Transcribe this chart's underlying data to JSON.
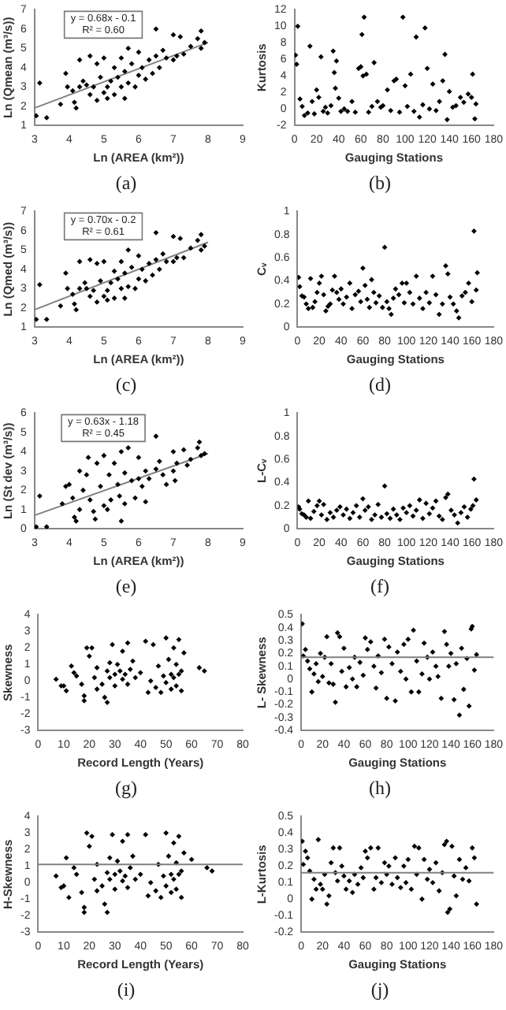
{
  "chart_data": [
    {
      "type": "scatter",
      "title": "(a)",
      "xlabel": "Ln (AREA (km²))",
      "ylabel": "Ln (Qmean (m³/s))",
      "xlim": [
        3,
        9
      ],
      "xticks": [
        3,
        4,
        5,
        6,
        7,
        8,
        9
      ],
      "ylim": [
        1,
        7
      ],
      "yticks": [
        1,
        2,
        3,
        4,
        5,
        6,
        7
      ],
      "marker": "diamond",
      "annotations": [
        "y = 0.68x - 0.1",
        "R² = 0.60"
      ],
      "series": [
        {
          "color": "#000000",
          "x": [
            3.05,
            3.15,
            3.35,
            3.75,
            3.9,
            3.95,
            4.1,
            4.15,
            4.2,
            4.3,
            4.3,
            4.4,
            4.5,
            4.6,
            4.6,
            4.7,
            4.8,
            4.8,
            4.9,
            5.0,
            5.0,
            5.1,
            5.1,
            5.2,
            5.3,
            5.3,
            5.4,
            5.5,
            5.5,
            5.6,
            5.6,
            5.7,
            5.7,
            5.8,
            5.9,
            6.0,
            6.0,
            6.1,
            6.2,
            6.3,
            6.4,
            6.5,
            6.5,
            6.6,
            6.7,
            6.8,
            7.0,
            7.0,
            7.1,
            7.2,
            7.3,
            7.5,
            7.7,
            7.8,
            7.8,
            7.9
          ],
          "values": [
            1.5,
            3.2,
            1.4,
            2.1,
            3.7,
            3.0,
            2.8,
            2.2,
            1.9,
            4.4,
            3.0,
            3.3,
            3.1,
            4.6,
            2.6,
            3.0,
            2.3,
            4.2,
            3.5,
            2.7,
            4.5,
            3.0,
            2.4,
            3.3,
            4.0,
            2.6,
            3.5,
            4.5,
            3.0,
            2.4,
            3.8,
            5.0,
            3.2,
            4.2,
            3.0,
            4.8,
            3.6,
            4.0,
            3.4,
            4.4,
            3.7,
            6.0,
            4.6,
            4.0,
            4.9,
            4.5,
            5.7,
            4.4,
            4.6,
            5.6,
            4.7,
            5.1,
            5.5,
            5.9,
            5.0,
            5.3
          ]
        },
        {
          "type": "line",
          "color": "#808080",
          "marker": "none",
          "x": [
            3,
            8
          ],
          "values": [
            1.9,
            5.3
          ]
        }
      ]
    },
    {
      "type": "scatter",
      "title": "(b)",
      "xlabel": "Gauging Stations",
      "ylabel": "Kurtosis",
      "xlim": [
        0,
        180
      ],
      "xticks": [
        0,
        20,
        40,
        60,
        80,
        100,
        120,
        140,
        160,
        180
      ],
      "ylim": [
        -2,
        12
      ],
      "yticks": [
        -2,
        0,
        2,
        4,
        6,
        8,
        10,
        12
      ],
      "marker": "diamond",
      "series": [
        {
          "color": "#000000",
          "x": [
            1,
            2,
            3,
            5,
            7,
            9,
            12,
            14,
            16,
            18,
            20,
            22,
            24,
            26,
            28,
            30,
            33,
            35,
            36,
            37,
            38,
            40,
            42,
            45,
            48,
            52,
            55,
            58,
            60,
            61,
            62,
            63,
            65,
            67,
            70,
            72,
            75,
            78,
            80,
            84,
            87,
            90,
            92,
            95,
            98,
            100,
            102,
            105,
            108,
            110,
            113,
            116,
            118,
            120,
            122,
            125,
            128,
            131,
            134,
            136,
            138,
            140,
            143,
            146,
            150,
            153,
            157,
            160,
            161,
            163,
            164
          ],
          "values": [
            6.5,
            5.4,
            10,
            1.2,
            0.3,
            -0.8,
            -0.5,
            7.6,
            0.9,
            -0.6,
            2.3,
            1.4,
            6.3,
            -0.3,
            0.2,
            -0.5,
            0.4,
            7.0,
            4.4,
            2.5,
            5.8,
            1.3,
            -0.3,
            0,
            -0.3,
            0.9,
            -0.4,
            4.9,
            5.1,
            9.0,
            4.0,
            11.1,
            4.2,
            -0.4,
            0.3,
            5.6,
            0.9,
            0.2,
            0.4,
            2.3,
            -0.2,
            3.4,
            3.6,
            -0.4,
            11.1,
            2.8,
            0.3,
            4.2,
            -0.3,
            8.7,
            -1.0,
            0.5,
            9.8,
            4.9,
            0,
            3.0,
            -0.2,
            0.9,
            3.4,
            6.6,
            -1.3,
            2.1,
            0.2,
            0.4,
            1.4,
            0.8,
            1.8,
            1.4,
            4.2,
            -1.2,
            0.6
          ]
        }
      ]
    },
    {
      "type": "scatter",
      "title": "(c)",
      "xlabel": "Ln (AREA (km²))",
      "ylabel": "Ln (Qmed (m³/s))",
      "xlim": [
        3,
        9
      ],
      "xticks": [
        3,
        4,
        5,
        6,
        7,
        8,
        9
      ],
      "ylim": [
        1,
        7
      ],
      "yticks": [
        1,
        2,
        3,
        4,
        5,
        6,
        7
      ],
      "marker": "diamond",
      "annotations": [
        "y = 0.70x - 0.2",
        "R² = 0.61"
      ],
      "series": [
        {
          "color": "#000000",
          "x": [
            3.05,
            3.15,
            3.35,
            3.75,
            3.9,
            3.95,
            4.1,
            4.15,
            4.2,
            4.3,
            4.3,
            4.45,
            4.5,
            4.6,
            4.6,
            4.7,
            4.8,
            4.8,
            4.9,
            5.0,
            5.0,
            5.1,
            5.1,
            5.2,
            5.3,
            5.3,
            5.4,
            5.5,
            5.5,
            5.6,
            5.6,
            5.7,
            5.7,
            5.8,
            5.9,
            6.0,
            6.0,
            6.1,
            6.2,
            6.3,
            6.4,
            6.5,
            6.5,
            6.6,
            6.7,
            6.8,
            7.0,
            7.0,
            7.1,
            7.2,
            7.3,
            7.5,
            7.7,
            7.8,
            7.8,
            7.9
          ],
          "values": [
            1.4,
            3.2,
            1.4,
            2.1,
            3.8,
            3.0,
            2.7,
            2.2,
            1.9,
            4.4,
            3.0,
            3.3,
            3.0,
            4.5,
            2.6,
            2.9,
            2.3,
            4.3,
            3.4,
            2.6,
            4.4,
            2.9,
            2.4,
            3.3,
            3.9,
            2.5,
            3.5,
            4.4,
            3.0,
            2.5,
            3.8,
            5.0,
            3.1,
            4.1,
            3.0,
            4.7,
            3.5,
            4.0,
            3.4,
            4.3,
            3.7,
            5.9,
            4.5,
            4.0,
            4.8,
            4.4,
            5.7,
            4.4,
            4.6,
            5.6,
            4.6,
            5.1,
            5.5,
            5.8,
            5.0,
            5.2
          ]
        },
        {
          "type": "line",
          "color": "#808080",
          "marker": "none",
          "x": [
            3,
            8
          ],
          "values": [
            1.9,
            5.4
          ]
        }
      ]
    },
    {
      "type": "scatter",
      "title": "(d)",
      "xlabel": "Gauging Stations",
      "ylabel": "Cᵥ",
      "xlim": [
        0,
        180
      ],
      "xticks": [
        0,
        20,
        40,
        60,
        80,
        100,
        120,
        140,
        160,
        180
      ],
      "ylim": [
        0,
        1
      ],
      "yticks": [
        0,
        0.2,
        0.4,
        0.6,
        0.8,
        1
      ],
      "marker": "diamond",
      "series": [
        {
          "color": "#000000",
          "x": [
            1,
            2,
            4,
            6,
            8,
            10,
            12,
            14,
            16,
            18,
            20,
            22,
            24,
            26,
            28,
            30,
            32,
            34,
            36,
            38,
            40,
            42,
            45,
            48,
            50,
            53,
            56,
            58,
            60,
            62,
            64,
            66,
            68,
            70,
            72,
            75,
            78,
            80,
            82,
            84,
            86,
            88,
            90,
            93,
            96,
            98,
            100,
            103,
            106,
            109,
            112,
            115,
            118,
            121,
            124,
            127,
            130,
            133,
            136,
            138,
            140,
            143,
            146,
            148,
            151,
            154,
            157,
            160,
            162,
            164,
            165
          ],
          "values": [
            0.43,
            0.35,
            0.27,
            0.26,
            0.2,
            0.16,
            0.42,
            0.17,
            0.22,
            0.3,
            0.38,
            0.44,
            0.28,
            0.14,
            0.18,
            0.2,
            0.32,
            0.44,
            0.3,
            0.24,
            0.33,
            0.2,
            0.26,
            0.38,
            0.16,
            0.28,
            0.31,
            0.22,
            0.51,
            0.36,
            0.24,
            0.17,
            0.41,
            0.3,
            0.21,
            0.27,
            0.17,
            0.69,
            0.22,
            0.16,
            0.11,
            0.25,
            0.33,
            0.28,
            0.38,
            0.21,
            0.38,
            0.3,
            0.2,
            0.44,
            0.25,
            0.16,
            0.3,
            0.21,
            0.44,
            0.28,
            0.11,
            0.2,
            0.53,
            0.46,
            0.26,
            0.2,
            0.14,
            0.08,
            0.27,
            0.3,
            0.38,
            0.22,
            0.83,
            0.32,
            0.47
          ]
        }
      ]
    },
    {
      "type": "scatter",
      "title": "(e)",
      "xlabel": "Ln (AREA (km²))",
      "ylabel": "Ln (St dev (m³/s))",
      "xlim": [
        3,
        9
      ],
      "xticks": [
        3,
        4,
        5,
        6,
        7,
        8,
        9
      ],
      "ylim": [
        0,
        6
      ],
      "yticks": [
        0,
        1,
        2,
        3,
        4,
        5,
        6
      ],
      "marker": "diamond",
      "annotations": [
        "y = 0.63x - 1.18",
        "R² = 0.45"
      ],
      "series": [
        {
          "color": "#000000",
          "x": [
            3.05,
            3.15,
            3.35,
            3.8,
            3.9,
            4.0,
            4.1,
            4.15,
            4.2,
            4.3,
            4.3,
            4.4,
            4.5,
            4.55,
            4.6,
            4.7,
            4.75,
            4.8,
            4.9,
            5.0,
            5.0,
            5.1,
            5.15,
            5.2,
            5.3,
            5.4,
            5.45,
            5.5,
            5.5,
            5.6,
            5.6,
            5.7,
            5.8,
            5.9,
            6.0,
            6.0,
            6.1,
            6.2,
            6.2,
            6.3,
            6.5,
            6.5,
            6.6,
            6.7,
            6.8,
            7.0,
            7.0,
            7.05,
            7.1,
            7.3,
            7.4,
            7.5,
            7.7,
            7.75,
            7.8,
            7.9
          ],
          "values": [
            0.1,
            1.7,
            0.1,
            1.3,
            2.2,
            2.3,
            1.6,
            0.6,
            0.4,
            3.0,
            1.0,
            2.0,
            2.8,
            3.7,
            1.5,
            0.9,
            0.5,
            3.4,
            2.2,
            1.2,
            3.8,
            1.0,
            2.8,
            1.5,
            3.4,
            2.3,
            1.7,
            4.0,
            0.4,
            1.3,
            2.9,
            4.2,
            2.5,
            1.6,
            3.7,
            2.6,
            2.2,
            1.4,
            3.0,
            2.6,
            4.8,
            3.1,
            3.5,
            2.8,
            2.3,
            4.0,
            3.0,
            2.5,
            3.4,
            4.1,
            3.3,
            3.6,
            4.2,
            4.5,
            3.8,
            3.9
          ]
        },
        {
          "type": "line",
          "color": "#808080",
          "marker": "none",
          "x": [
            3,
            8
          ],
          "values": [
            0.7,
            3.9
          ]
        }
      ]
    },
    {
      "type": "scatter",
      "title": "(f)",
      "xlabel": "Gauging Stations",
      "ylabel": "L-Cᵥ",
      "xlim": [
        0,
        180
      ],
      "xticks": [
        0,
        20,
        40,
        60,
        80,
        100,
        120,
        140,
        160,
        180
      ],
      "ylim": [
        0,
        1
      ],
      "yticks": [
        0,
        0.2,
        0.4,
        0.6,
        0.8,
        1
      ],
      "marker": "diamond",
      "series": [
        {
          "color": "#000000",
          "x": [
            1,
            2,
            4,
            6,
            8,
            10,
            12,
            15,
            18,
            20,
            22,
            24,
            27,
            30,
            33,
            36,
            39,
            42,
            45,
            48,
            51,
            54,
            57,
            60,
            62,
            65,
            68,
            71,
            74,
            77,
            80,
            82,
            85,
            88,
            91,
            94,
            97,
            100,
            103,
            106,
            109,
            112,
            115,
            118,
            121,
            124,
            127,
            130,
            133,
            136,
            138,
            141,
            144,
            147,
            150,
            153,
            156,
            159,
            161,
            162,
            164
          ],
          "values": [
            0.19,
            0.17,
            0.13,
            0.12,
            0.1,
            0.24,
            0.09,
            0.15,
            0.2,
            0.24,
            0.12,
            0.21,
            0.08,
            0.14,
            0.1,
            0.16,
            0.19,
            0.12,
            0.17,
            0.09,
            0.14,
            0.2,
            0.1,
            0.26,
            0.16,
            0.19,
            0.08,
            0.12,
            0.21,
            0.1,
            0.37,
            0.13,
            0.09,
            0.17,
            0.12,
            0.08,
            0.18,
            0.14,
            0.2,
            0.11,
            0.16,
            0.25,
            0.09,
            0.22,
            0.13,
            0.18,
            0.24,
            0.11,
            0.08,
            0.27,
            0.3,
            0.16,
            0.12,
            0.05,
            0.14,
            0.19,
            0.1,
            0.17,
            0.2,
            0.43,
            0.25
          ]
        }
      ]
    },
    {
      "type": "scatter",
      "title": "(g)",
      "xlabel": "Record Length (Years)",
      "ylabel": "Skewness",
      "xlim": [
        0,
        80
      ],
      "xticks": [
        0,
        10,
        20,
        30,
        40,
        50,
        60,
        70,
        80
      ],
      "ylim": [
        -3,
        4
      ],
      "yticks": [
        -3,
        -2,
        -1,
        0,
        1,
        2,
        3,
        4
      ],
      "marker": "diamond",
      "series": [
        {
          "color": "#000000",
          "x": [
            7,
            9,
            10,
            11,
            13,
            14,
            15,
            17,
            18,
            18,
            19,
            20,
            21,
            22,
            23,
            23,
            25,
            26,
            27,
            27,
            28,
            28,
            29,
            30,
            30,
            31,
            32,
            33,
            33,
            34,
            35,
            35,
            36,
            37,
            38,
            40,
            42,
            43,
            44,
            45,
            46,
            47,
            48,
            49,
            50,
            50,
            51,
            52,
            52,
            53,
            53,
            54,
            54,
            55,
            55,
            56,
            56,
            57,
            63,
            65
          ],
          "values": [
            0.1,
            -0.3,
            -0.3,
            -0.6,
            0.9,
            0.5,
            0.3,
            -0.2,
            -0.9,
            -1.2,
            2.0,
            1.5,
            2.0,
            0.2,
            0.8,
            -0.5,
            -0.2,
            -1.0,
            -1.3,
            0.6,
            1.1,
            0.2,
            2.2,
            0.4,
            -0.3,
            1.0,
            0.6,
            0.1,
            1.8,
            0.4,
            -0.2,
            2.3,
            0.7,
            1.2,
            0.2,
            0.5,
            2.4,
            -0.7,
            0.0,
            2.2,
            -0.4,
            0.9,
            -0.7,
            0.3,
            2.6,
            -0.1,
            1.3,
            0.4,
            -0.5,
            2.0,
            0.2,
            -0.3,
            1.0,
            0.4,
            2.5,
            0.6,
            -0.6,
            1.7,
            0.8,
            0.6
          ]
        }
      ]
    },
    {
      "type": "scatter",
      "title": "(h)",
      "xlabel": "Gauging Stations",
      "ylabel": "L- Skewness",
      "xlim": [
        0,
        180
      ],
      "xticks": [
        0,
        20,
        40,
        60,
        80,
        100,
        120,
        140,
        160,
        180
      ],
      "ylim": [
        -0.4,
        0.5
      ],
      "yticks": [
        -0.4,
        -0.3,
        -0.2,
        -0.1,
        0,
        0.1,
        0.2,
        0.3,
        0.4,
        0.5
      ],
      "marker": "diamond",
      "ref_lines": [
        {
          "axis": "y",
          "value": 0.17,
          "color": "#808080"
        }
      ],
      "series": [
        {
          "color": "#000000",
          "x": [
            1,
            2,
            4,
            6,
            8,
            10,
            12,
            14,
            16,
            18,
            20,
            22,
            24,
            26,
            28,
            30,
            32,
            34,
            36,
            38,
            40,
            42,
            45,
            48,
            50,
            52,
            55,
            58,
            60,
            62,
            65,
            68,
            70,
            72,
            75,
            78,
            80,
            82,
            85,
            88,
            90,
            93,
            96,
            98,
            100,
            103,
            105,
            108,
            110,
            113,
            115,
            118,
            120,
            123,
            126,
            128,
            131,
            134,
            136,
            138,
            140,
            143,
            145,
            148,
            150,
            152,
            155,
            157,
            159,
            160,
            162,
            164
          ],
          "values": [
            0.43,
            0.18,
            0.23,
            0.14,
            0.08,
            -0.1,
            0.04,
            0.12,
            -0.02,
            0.2,
            0.02,
            0.17,
            0.33,
            -0.03,
            0.12,
            -0.04,
            -0.18,
            0.36,
            0.33,
            0.06,
            0.24,
            -0.06,
            0.09,
            0.0,
            0.17,
            -0.06,
            0.13,
            0.03,
            0.32,
            0.23,
            0.29,
            0.1,
            -0.07,
            0.18,
            0.05,
            0.31,
            -0.15,
            0.25,
            0.12,
            -0.17,
            0.21,
            0.06,
            0.27,
            0.0,
            0.31,
            -0.1,
            0.38,
            0.14,
            -0.1,
            0.04,
            0.28,
            0.17,
            0.0,
            0.21,
            0.1,
            0.02,
            -0.15,
            0.37,
            0.27,
            0.1,
            0.2,
            -0.16,
            0.12,
            -0.28,
            0.24,
            -0.08,
            0.16,
            -0.21,
            0.39,
            0.41,
            0.07,
            0.19
          ]
        }
      ]
    },
    {
      "type": "scatter",
      "title": "(i)",
      "xlabel": "Record Length (Years)",
      "ylabel": "H-Skewness",
      "xlim": [
        0,
        80
      ],
      "xticks": [
        0,
        10,
        20,
        30,
        40,
        50,
        60,
        70,
        80
      ],
      "ylim": [
        -3,
        4
      ],
      "yticks": [
        -3,
        -2,
        -1,
        0,
        1,
        2,
        3,
        4
      ],
      "marker": "diamond",
      "ref_lines": [
        {
          "axis": "y",
          "value": 1.1,
          "color": "#808080"
        }
      ],
      "series": [
        {
          "color": "#000000",
          "x": [
            7,
            9,
            10,
            11,
            12,
            14,
            15,
            17,
            18,
            18,
            19,
            20,
            21,
            22,
            23,
            23,
            25,
            26,
            27,
            27,
            28,
            28,
            29,
            30,
            30,
            31,
            32,
            33,
            33,
            34,
            35,
            35,
            36,
            37,
            38,
            40,
            42,
            43,
            44,
            46,
            47,
            48,
            49,
            50,
            50,
            51,
            52,
            52,
            53,
            53,
            54,
            54,
            55,
            55,
            56,
            56,
            57,
            60,
            66,
            68
          ],
          "values": [
            0.4,
            -0.3,
            -0.2,
            1.5,
            -0.9,
            0.9,
            0.5,
            -0.6,
            -1.5,
            -1.8,
            3.0,
            2.2,
            2.8,
            0.2,
            1.1,
            -0.5,
            -0.2,
            -1.3,
            -1.8,
            0.6,
            1.5,
            0.2,
            2.9,
            0.5,
            -0.4,
            1.3,
            0.7,
            0.1,
            2.5,
            0.4,
            -0.3,
            2.9,
            0.9,
            1.6,
            0.2,
            0.5,
            2.9,
            -0.8,
            0.0,
            -0.5,
            1.1,
            -0.9,
            0.4,
            3.0,
            -0.2,
            1.6,
            0.5,
            -0.6,
            2.4,
            0.2,
            -0.4,
            1.2,
            0.5,
            2.8,
            0.7,
            -0.9,
            1.8,
            1.4,
            0.9,
            0.7
          ]
        }
      ]
    },
    {
      "type": "scatter",
      "title": "(j)",
      "xlabel": "Gauging Stations",
      "ylabel": "L-Kurtosis",
      "xlim": [
        0,
        180
      ],
      "xticks": [
        0,
        20,
        40,
        60,
        80,
        100,
        120,
        140,
        160,
        180
      ],
      "ylim": [
        -0.2,
        0.5
      ],
      "yticks": [
        -0.2,
        -0.1,
        0,
        0.1,
        0.2,
        0.3,
        0.4,
        0.5
      ],
      "marker": "diamond",
      "ref_lines": [
        {
          "axis": "y",
          "value": 0.16,
          "color": "#808080"
        }
      ],
      "series": [
        {
          "color": "#000000",
          "x": [
            1,
            2,
            4,
            6,
            8,
            10,
            12,
            14,
            16,
            18,
            20,
            22,
            24,
            26,
            28,
            30,
            32,
            34,
            36,
            38,
            40,
            42,
            45,
            48,
            50,
            53,
            56,
            58,
            60,
            62,
            65,
            68,
            70,
            72,
            75,
            78,
            80,
            82,
            85,
            88,
            90,
            93,
            96,
            98,
            100,
            103,
            106,
            108,
            110,
            113,
            115,
            118,
            120,
            123,
            126,
            129,
            132,
            134,
            136,
            137,
            139,
            141,
            143,
            145,
            148,
            151,
            154,
            157,
            160,
            162,
            164
          ],
          "values": [
            0.35,
            0.21,
            0.29,
            0.25,
            0.17,
            0.0,
            0.12,
            0.06,
            0.36,
            0.09,
            0.06,
            0.15,
            -0.03,
            0.02,
            0.22,
            0.31,
            0.16,
            0.11,
            0.31,
            0.2,
            0.14,
            0.06,
            0.11,
            0.04,
            0.15,
            0.09,
            0.19,
            0.13,
            0.29,
            0.25,
            0.31,
            0.06,
            0.13,
            0.31,
            0.1,
            0.22,
            0.15,
            0.2,
            0.09,
            0.25,
            0.13,
            0.07,
            0.2,
            0.1,
            0.24,
            0.06,
            0.32,
            0.15,
            0.31,
            0.0,
            0.24,
            0.12,
            0.18,
            0.1,
            0.22,
            0.05,
            0.16,
            0.33,
            0.35,
            -0.08,
            -0.06,
            0.32,
            0.14,
            0.02,
            0.24,
            0.12,
            0.19,
            0.11,
            0.31,
            0.25,
            -0.03
          ]
        }
      ]
    }
  ]
}
